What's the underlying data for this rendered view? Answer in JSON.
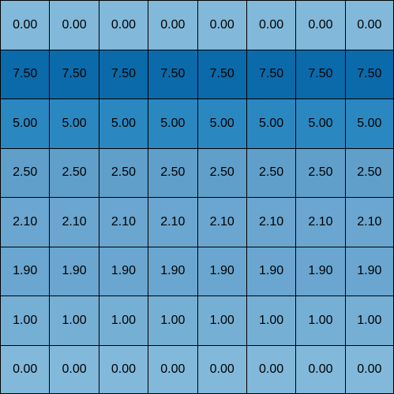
{
  "matrix": [
    [
      "0.00",
      "0.00",
      "0.00",
      "0.00",
      "0.00",
      "0.00",
      "0.00",
      "0.00"
    ],
    [
      "7.50",
      "7.50",
      "7.50",
      "7.50",
      "7.50",
      "7.50",
      "7.50",
      "7.50"
    ],
    [
      "5.00",
      "5.00",
      "5.00",
      "5.00",
      "5.00",
      "5.00",
      "5.00",
      "5.00"
    ],
    [
      "2.50",
      "2.50",
      "2.50",
      "2.50",
      "2.50",
      "2.50",
      "2.50",
      "2.50"
    ],
    [
      "2.10",
      "2.10",
      "2.10",
      "2.10",
      "2.10",
      "2.10",
      "2.10",
      "2.10"
    ],
    [
      "1.90",
      "1.90",
      "1.90",
      "1.90",
      "1.90",
      "1.90",
      "1.90",
      "1.90"
    ],
    [
      "1.00",
      "1.00",
      "1.00",
      "1.00",
      "1.00",
      "1.00",
      "1.00",
      "1.00"
    ],
    [
      "0.00",
      "0.00",
      "0.00",
      "0.00",
      "0.00",
      "0.00",
      "0.00",
      "0.00"
    ]
  ],
  "row_colors": [
    "#82b8d9",
    "#0a6aaa",
    "#2b87c0",
    "#5f9fca",
    "#6aa6cf",
    "#6aa6cf",
    "#76afd4",
    "#82b8d9"
  ]
}
